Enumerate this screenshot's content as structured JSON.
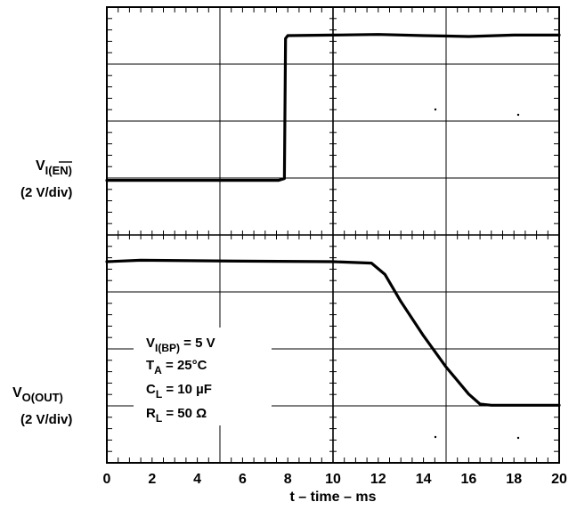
{
  "chart_data": {
    "type": "line",
    "title": "",
    "xlabel": "t – time – ms",
    "xlim": [
      0,
      20
    ],
    "x_ticks": [
      "0",
      "2",
      "4",
      "6",
      "8",
      "10",
      "12",
      "14",
      "16",
      "18",
      "20"
    ],
    "grid": true,
    "panels": [
      {
        "label_main": "V",
        "label_sub": "I(EN)",
        "label_scale": "(2 V/div)",
        "units_per_div": 2,
        "series": [
          {
            "x": [
              0,
              7.6,
              7.85,
              7.9,
              8.0,
              10,
              12,
              14,
              16,
              18,
              20
            ],
            "y": [
              -0.08,
              -0.08,
              -0.02,
              4.9,
              5.0,
              5.02,
              5.04,
              5.0,
              4.97,
              5.02,
              5.02
            ]
          }
        ]
      },
      {
        "label_main": "V",
        "label_sub": "O(OUT)",
        "label_scale": "(2 V/div)",
        "units_per_div": 2,
        "series": [
          {
            "x": [
              0,
              1.5,
              6,
              10,
              11.7,
              12.3,
              13,
              14,
              15,
              16,
              16.5,
              17,
              20
            ],
            "y": [
              5.0,
              5.05,
              5.02,
              5.0,
              4.95,
              4.55,
              3.6,
              2.4,
              1.3,
              0.35,
              0.0,
              -0.04,
              -0.04
            ]
          }
        ]
      }
    ],
    "annotation": [
      {
        "main": "V",
        "sub": "I(BP)",
        "rest": " = 5 V"
      },
      {
        "main": "T",
        "sub": "A",
        "rest": " = 25°C"
      },
      {
        "main": "C",
        "sub": "L",
        "rest": " = 10 µF"
      },
      {
        "main": "R",
        "sub": "L",
        "rest": " = 50 Ω"
      }
    ]
  }
}
